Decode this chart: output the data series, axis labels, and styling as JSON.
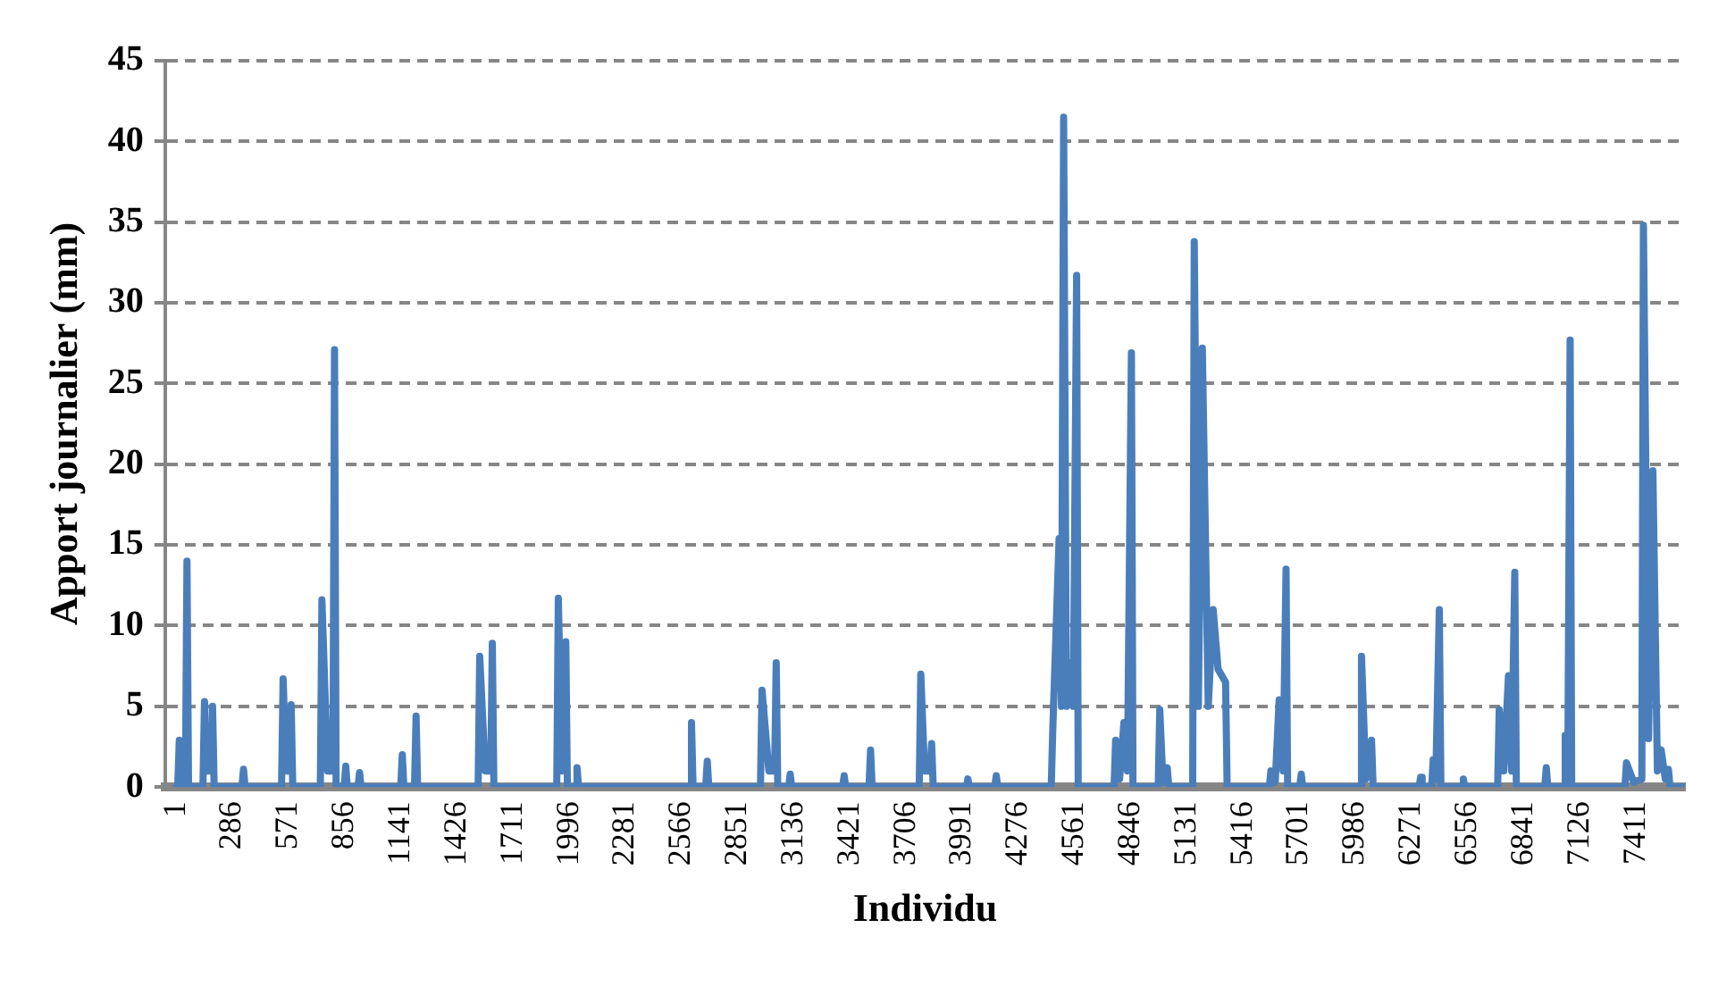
{
  "chart_data": {
    "type": "line",
    "xlabel": "Individu",
    "ylabel": "Apport journalier (mm)",
    "x": [
      1,
      9,
      17,
      25,
      48,
      56,
      64,
      137,
      145,
      160,
      178,
      186,
      194,
      335,
      343,
      351,
      536,
      544,
      560,
      577,
      585,
      593,
      733,
      741,
      770,
      797,
      805,
      813,
      854,
      862,
      870,
      924,
      932,
      940,
      1141,
      1149,
      1157,
      1211,
      1219,
      1227,
      1534,
      1542,
      1570,
      1598,
      1606,
      1614,
      1933,
      1941,
      1960,
      1979,
      1987,
      2028,
      2036,
      2044,
      2609,
      2617,
      2625,
      2689,
      2697,
      2705,
      2967,
      2975,
      3010,
      3039,
      3047,
      3055,
      3110,
      3118,
      3126,
      3384,
      3392,
      3400,
      3518,
      3526,
      3534,
      3773,
      3781,
      3800,
      3828,
      3836,
      3844,
      4012,
      4020,
      4028,
      4156,
      4164,
      4172,
      4443,
      4451,
      4483,
      4495,
      4506,
      4520,
      4537,
      4555,
      4572,
      4580,
      4762,
      4770,
      4790,
      4812,
      4830,
      4850,
      4858,
      4986,
      4994,
      5010,
      5032,
      5040,
      5161,
      5169,
      5190,
      5210,
      5240,
      5265,
      5290,
      5328,
      5336,
      5550,
      5558,
      5580,
      5600,
      5620,
      5635,
      5643,
      5704,
      5712,
      5720,
      6010,
      6018,
      6040,
      6069,
      6077,
      6310,
      6318,
      6326,
      6374,
      6382,
      6395,
      6413,
      6421,
      6527,
      6535,
      6543,
      6709,
      6717,
      6740,
      6764,
      6780,
      6796,
      6804,
      6948,
      6956,
      6964,
      7044,
      7052,
      7065,
      7077,
      7085,
      7355,
      7363,
      7400,
      7441,
      7449,
      7475,
      7497,
      7520,
      7539,
      7560,
      7576,
      7584,
      7650
    ],
    "series": [
      {
        "color": "#4a7ebb",
        "values": [
          0,
          0,
          2.9,
          0,
          0,
          14.0,
          0,
          0,
          5.3,
          1,
          1,
          5.0,
          0,
          0,
          1.1,
          0,
          0,
          6.7,
          1,
          1,
          5.1,
          0,
          0,
          11.6,
          1,
          1,
          27.1,
          0,
          0,
          1.3,
          0,
          0,
          0.9,
          0,
          0,
          2.0,
          0,
          0,
          4.4,
          0,
          0,
          8.1,
          1,
          1,
          8.9,
          0,
          0,
          11.7,
          1,
          9.0,
          0,
          0,
          1.2,
          0,
          0,
          4.0,
          0,
          0,
          1.6,
          0,
          0,
          6.0,
          1,
          1,
          7.7,
          0,
          0,
          0.8,
          0,
          0,
          0.7,
          0,
          0,
          2.3,
          0,
          0,
          7.0,
          1,
          1,
          2.7,
          0,
          0,
          0.5,
          0,
          0,
          0.7,
          0,
          0,
          3.6,
          15.4,
          5,
          41.5,
          5,
          7.7,
          5,
          31.7,
          0,
          0,
          2.9,
          0.5,
          4.0,
          1,
          26.9,
          0,
          0,
          4.8,
          0.3,
          1.2,
          0,
          0,
          33.8,
          5,
          27.2,
          5,
          11.0,
          7.3,
          6.5,
          0,
          0,
          1.0,
          0.3,
          5.4,
          1,
          13.5,
          0,
          0,
          0.8,
          0,
          0,
          8.1,
          0.5,
          2.9,
          0,
          0,
          0.6,
          0,
          0,
          1.7,
          0.5,
          11.0,
          0,
          0,
          0.5,
          0,
          0,
          4.8,
          1,
          6.9,
          1,
          13.3,
          0,
          0,
          1.2,
          0,
          0,
          3.2,
          0.5,
          27.7,
          0,
          0,
          1.5,
          0.3,
          0.5,
          34.8,
          3,
          19.6,
          1,
          2.3,
          0.5,
          1.1,
          0,
          0
        ]
      }
    ],
    "xlim": [
      -55,
      7660
    ],
    "xticks": [
      1,
      286,
      571,
      856,
      1141,
      1426,
      1711,
      1996,
      2281,
      2566,
      2851,
      3136,
      3421,
      3706,
      3991,
      4276,
      4561,
      4846,
      5131,
      5416,
      5701,
      5986,
      6271,
      6556,
      6841,
      7126,
      7411
    ],
    "ylim": [
      0,
      45
    ],
    "yticks": [
      0,
      5,
      10,
      15,
      20,
      25,
      30,
      35,
      40,
      45
    ],
    "grid": "y",
    "legend": false,
    "marker": "none",
    "line_style": "solid"
  }
}
